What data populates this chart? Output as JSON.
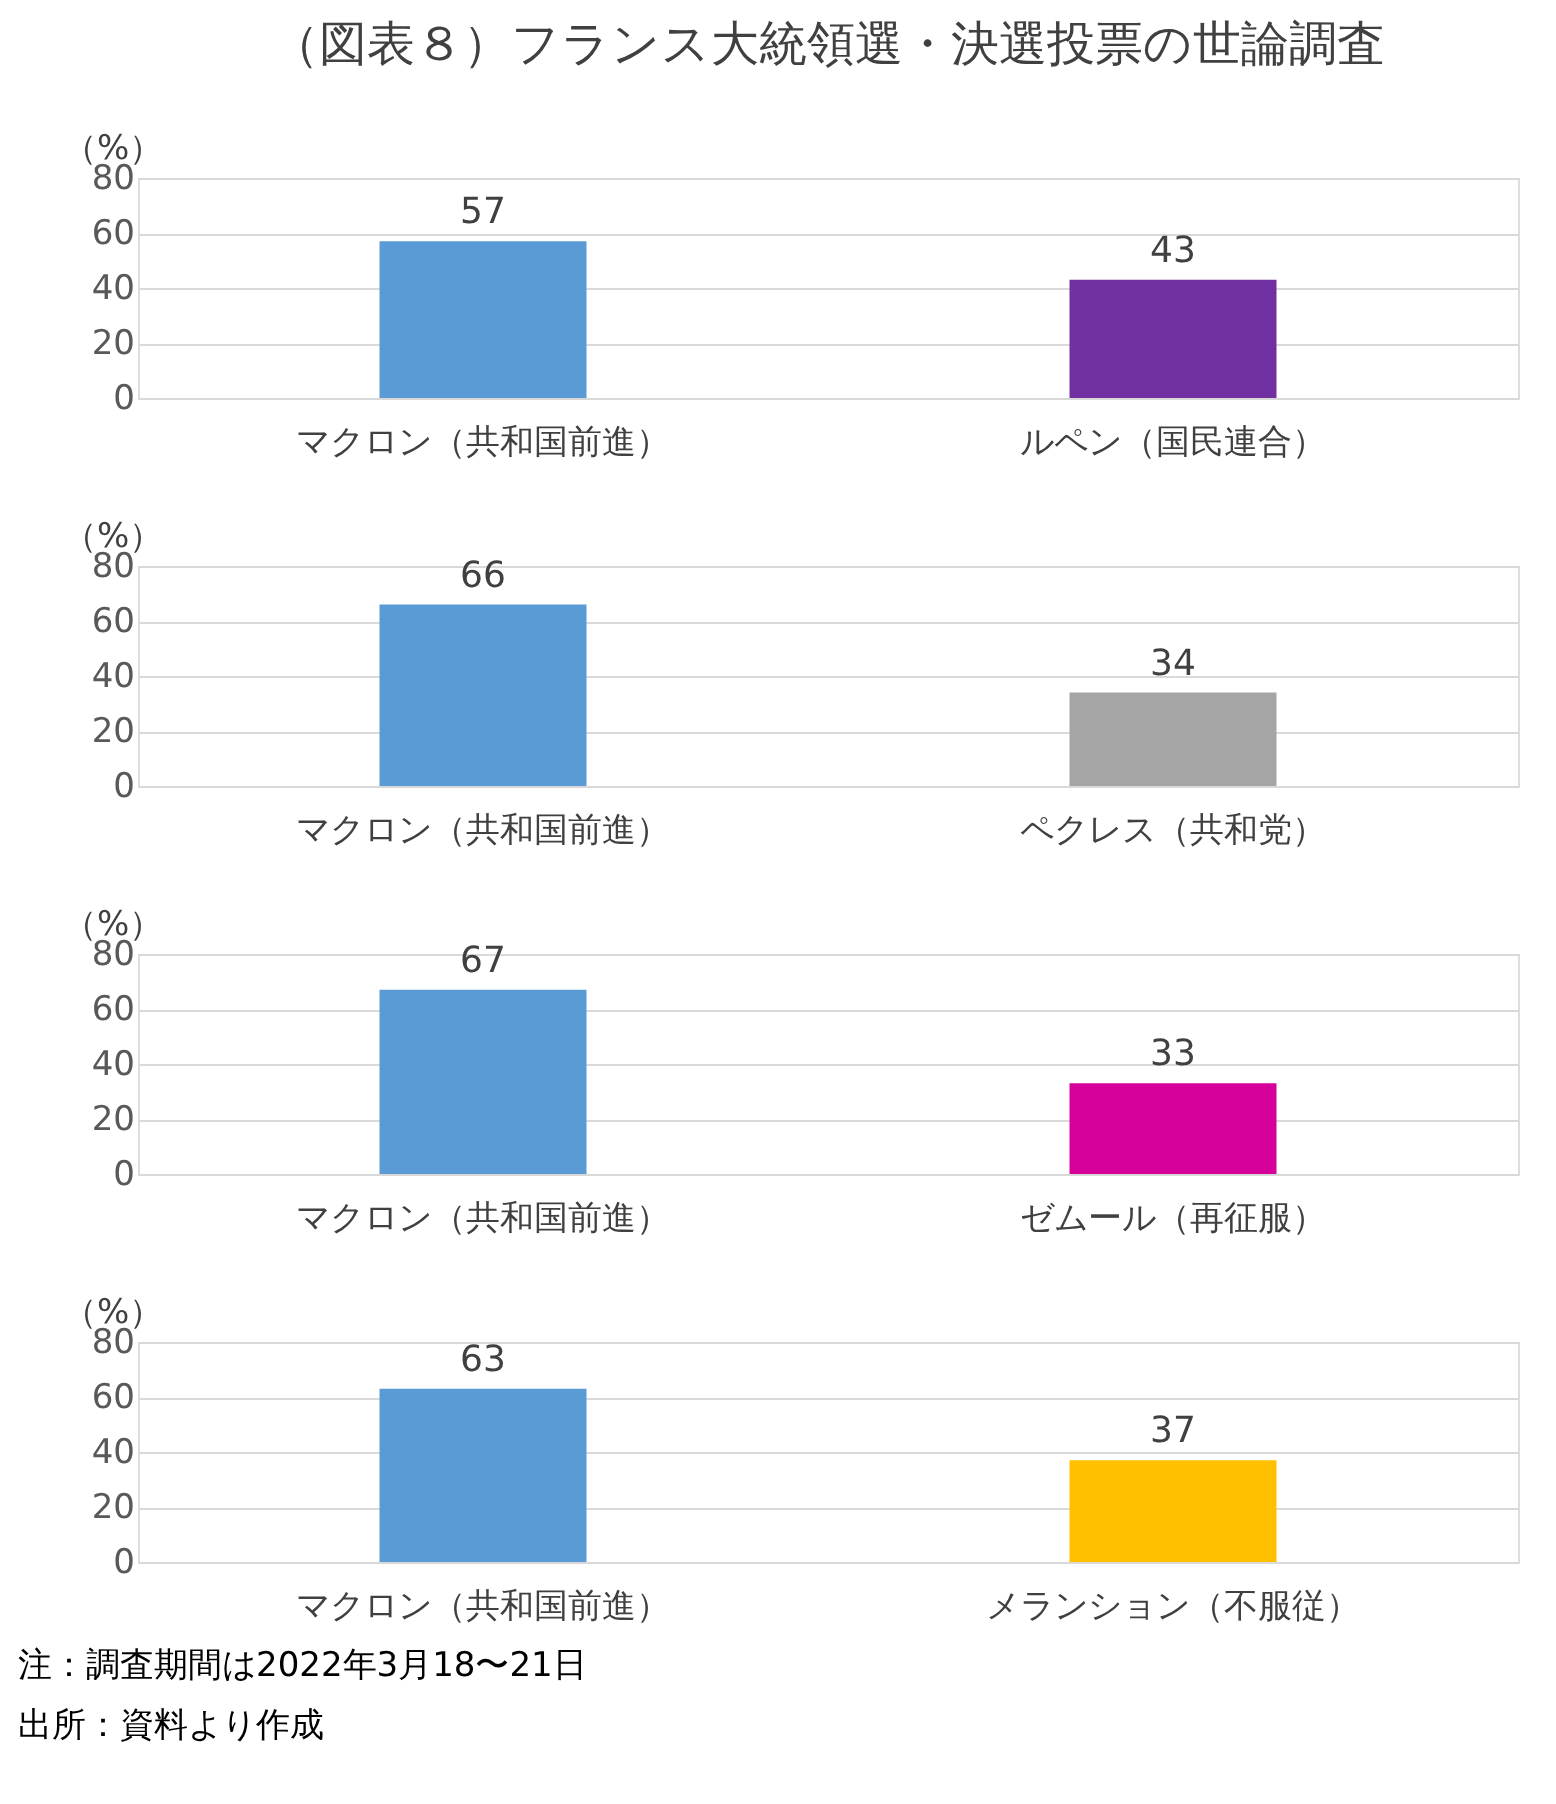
{
  "chart_data": [
    {
      "type": "bar",
      "title": "（図表８）フランス大統領選・決選投票の世論調査",
      "ylabel": "（%）",
      "categories": [
        "マクロン（共和国前進）",
        "ルペン（国民連合）"
      ],
      "values": [
        57,
        43
      ],
      "colors": [
        "#5b9bd5",
        "#7030a0"
      ],
      "ylim": [
        0,
        80
      ],
      "yticks": [
        0,
        20,
        40,
        60,
        80
      ],
      "grid": "y",
      "data_labels": true
    },
    {
      "type": "bar",
      "ylabel": "（%）",
      "categories": [
        "マクロン（共和国前進）",
        "ペクレス（共和党）"
      ],
      "values": [
        66,
        34
      ],
      "colors": [
        "#5b9bd5",
        "#a5a5a5"
      ],
      "ylim": [
        0,
        80
      ],
      "yticks": [
        0,
        20,
        40,
        60,
        80
      ],
      "grid": "y",
      "data_labels": true
    },
    {
      "type": "bar",
      "ylabel": "（%）",
      "categories": [
        "マクロン（共和国前進）",
        "ゼムール（再征服）"
      ],
      "values": [
        67,
        33
      ],
      "colors": [
        "#5b9bd5",
        "#d6009b"
      ],
      "ylim": [
        0,
        80
      ],
      "yticks": [
        0,
        20,
        40,
        60,
        80
      ],
      "grid": "y",
      "data_labels": true
    },
    {
      "type": "bar",
      "ylabel": "（%）",
      "categories": [
        "マクロン（共和国前進）",
        "メランション（不服従）"
      ],
      "values": [
        63,
        37
      ],
      "colors": [
        "#5b9bd5",
        "#ffc000"
      ],
      "ylim": [
        0,
        80
      ],
      "yticks": [
        0,
        20,
        40,
        60,
        80
      ],
      "grid": "y",
      "data_labels": true,
      "annotations": [
        "注：調査期間は2022年3月18〜21日",
        "出所：資料より作成"
      ]
    }
  ]
}
